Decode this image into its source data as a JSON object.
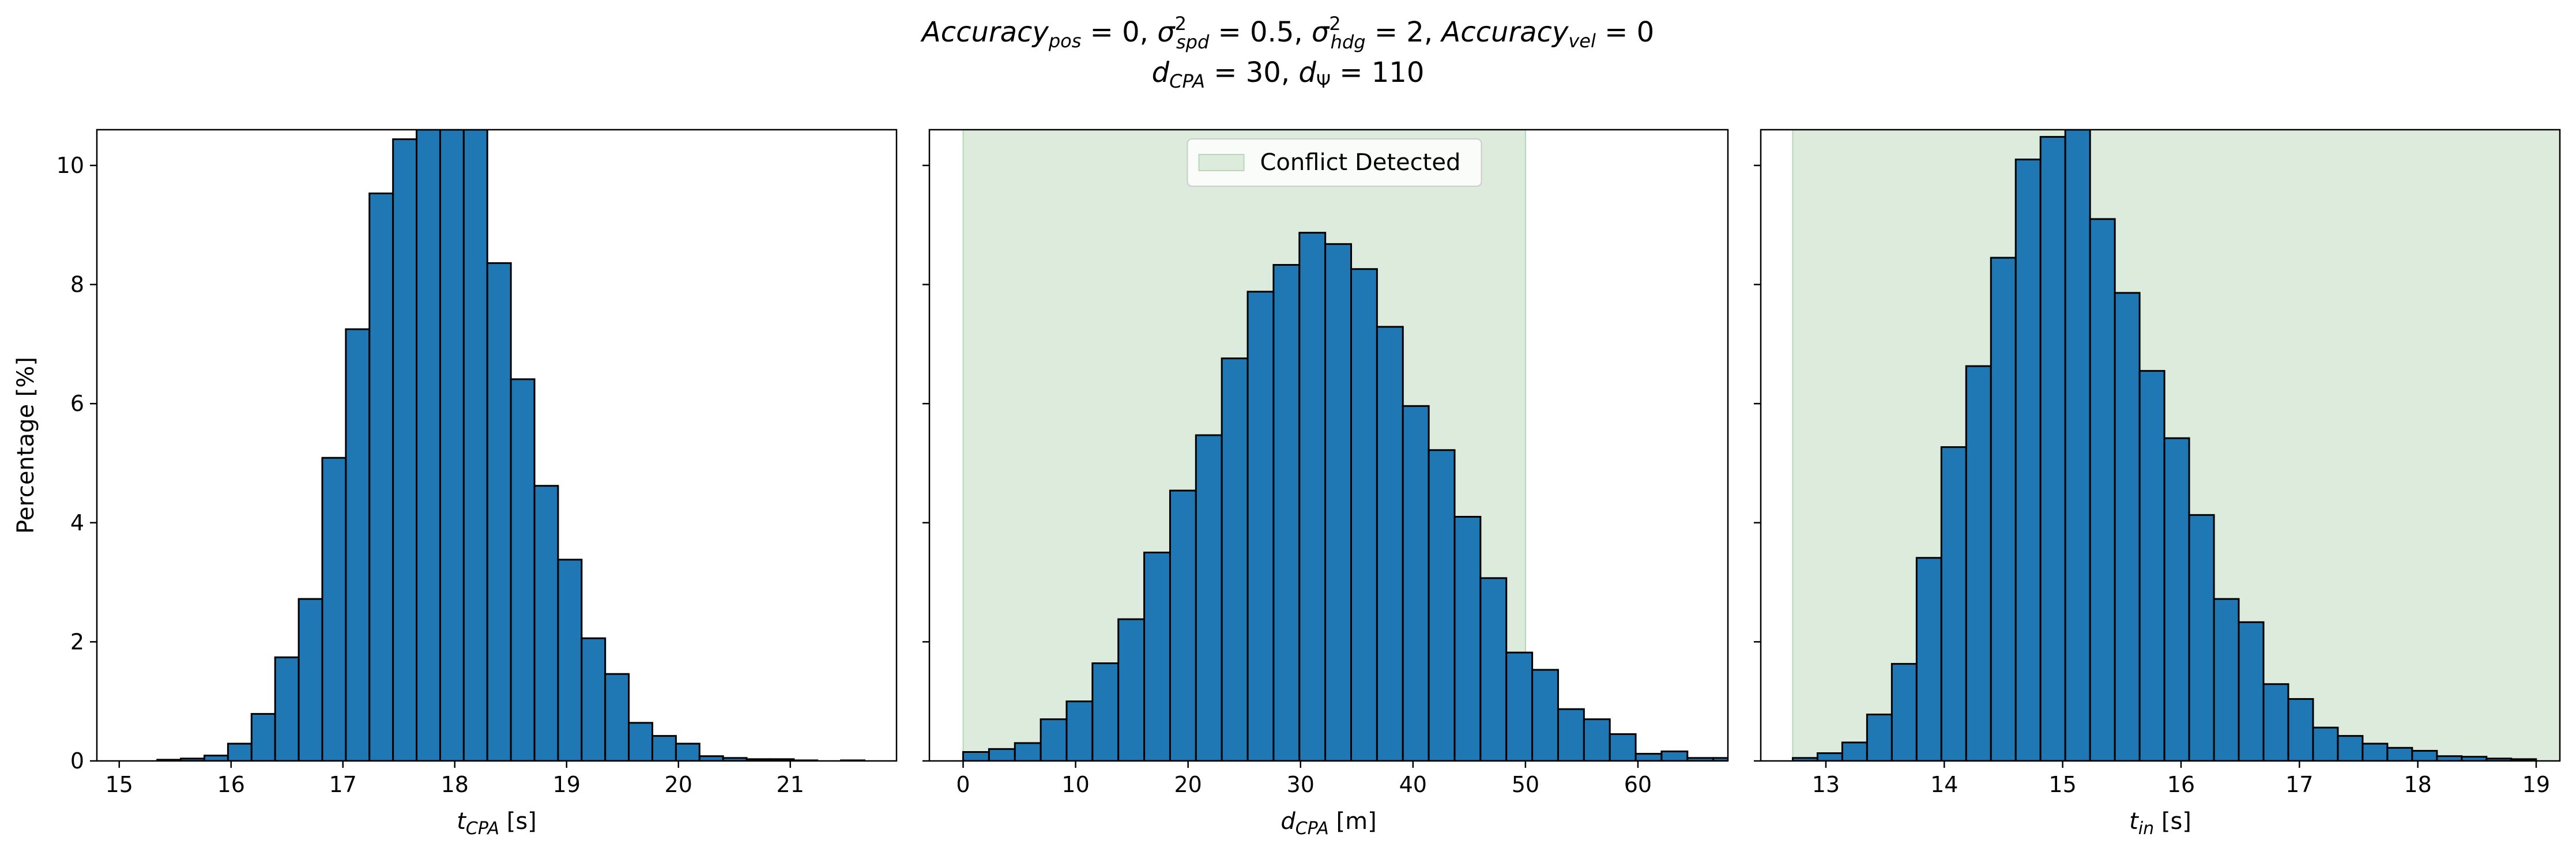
{
  "title": {
    "line1": "Accuracy_pos = 0, σ²_spd = 0.5, σ²_hdg = 2, Accuracy_vel = 0",
    "line2": "d_CPA = 30, d_Ψ = 110"
  },
  "colors": {
    "bar": "#1f77b4",
    "bar_edge": "#000000",
    "conflict_band": "#dcebdc",
    "conflict_edge": "#b7d7b7"
  },
  "chart_data": [
    {
      "type": "bar",
      "xlabel": "t_CPA [s]",
      "ylabel": "Percentage [%]",
      "xlim": [
        14.8,
        21.95
      ],
      "ylim": [
        0,
        10.6
      ],
      "xticks": [
        15,
        16,
        17,
        18,
        19,
        20,
        21
      ],
      "yticks": [
        0,
        2,
        4,
        6,
        8,
        10
      ],
      "bin_start": 15.34,
      "bin_width": 0.2108,
      "values": [
        0.02,
        0.04,
        0.09,
        0.29,
        0.79,
        1.74,
        2.72,
        5.09,
        7.25,
        9.53,
        10.44,
        10.6,
        10.6,
        10.6,
        8.36,
        6.41,
        4.62,
        3.38,
        2.06,
        1.46,
        0.64,
        0.42,
        0.29,
        0.08,
        0.05,
        0.03,
        0.03,
        0.01,
        0.0,
        0.01
      ],
      "shaded_region": null
    },
    {
      "type": "bar",
      "xlabel": "d_CPA [m]",
      "ylabel": "",
      "xlim": [
        -3.0,
        68.0
      ],
      "ylim": [
        0,
        10.6
      ],
      "xticks": [
        0,
        10,
        20,
        30,
        40,
        50,
        60
      ],
      "yticks": [
        0,
        2,
        4,
        6,
        8,
        10
      ],
      "bin_start": 0.0,
      "bin_width": 2.3,
      "values": [
        0.15,
        0.2,
        0.3,
        0.7,
        1.0,
        1.64,
        2.38,
        3.5,
        4.54,
        5.47,
        6.76,
        7.88,
        8.33,
        8.87,
        8.68,
        8.26,
        7.29,
        5.96,
        5.22,
        4.1,
        3.07,
        1.82,
        1.53,
        0.87,
        0.7,
        0.45,
        0.12,
        0.16,
        0.05,
        0.05
      ],
      "shaded_region": {
        "from": 0,
        "to": 50,
        "label": "Conflict Detected"
      },
      "legend_position": "upper center"
    },
    {
      "type": "bar",
      "xlabel": "t_in [s]",
      "ylabel": "",
      "xlim": [
        12.45,
        19.2
      ],
      "ylim": [
        0,
        10.6
      ],
      "xticks": [
        13,
        14,
        15,
        16,
        17,
        18,
        19
      ],
      "yticks": [
        0,
        2,
        4,
        6,
        8,
        10
      ],
      "bin_start": 12.72,
      "bin_width": 0.2093,
      "values": [
        0.05,
        0.13,
        0.31,
        0.78,
        1.63,
        3.41,
        5.27,
        6.63,
        8.45,
        10.1,
        10.48,
        10.6,
        9.1,
        7.86,
        6.55,
        5.42,
        4.13,
        2.72,
        2.33,
        1.29,
        1.04,
        0.56,
        0.42,
        0.29,
        0.22,
        0.17,
        0.08,
        0.07,
        0.04,
        0.03
      ],
      "shaded_region": {
        "from": 12.72,
        "to": 19.2,
        "label": ""
      }
    }
  ]
}
